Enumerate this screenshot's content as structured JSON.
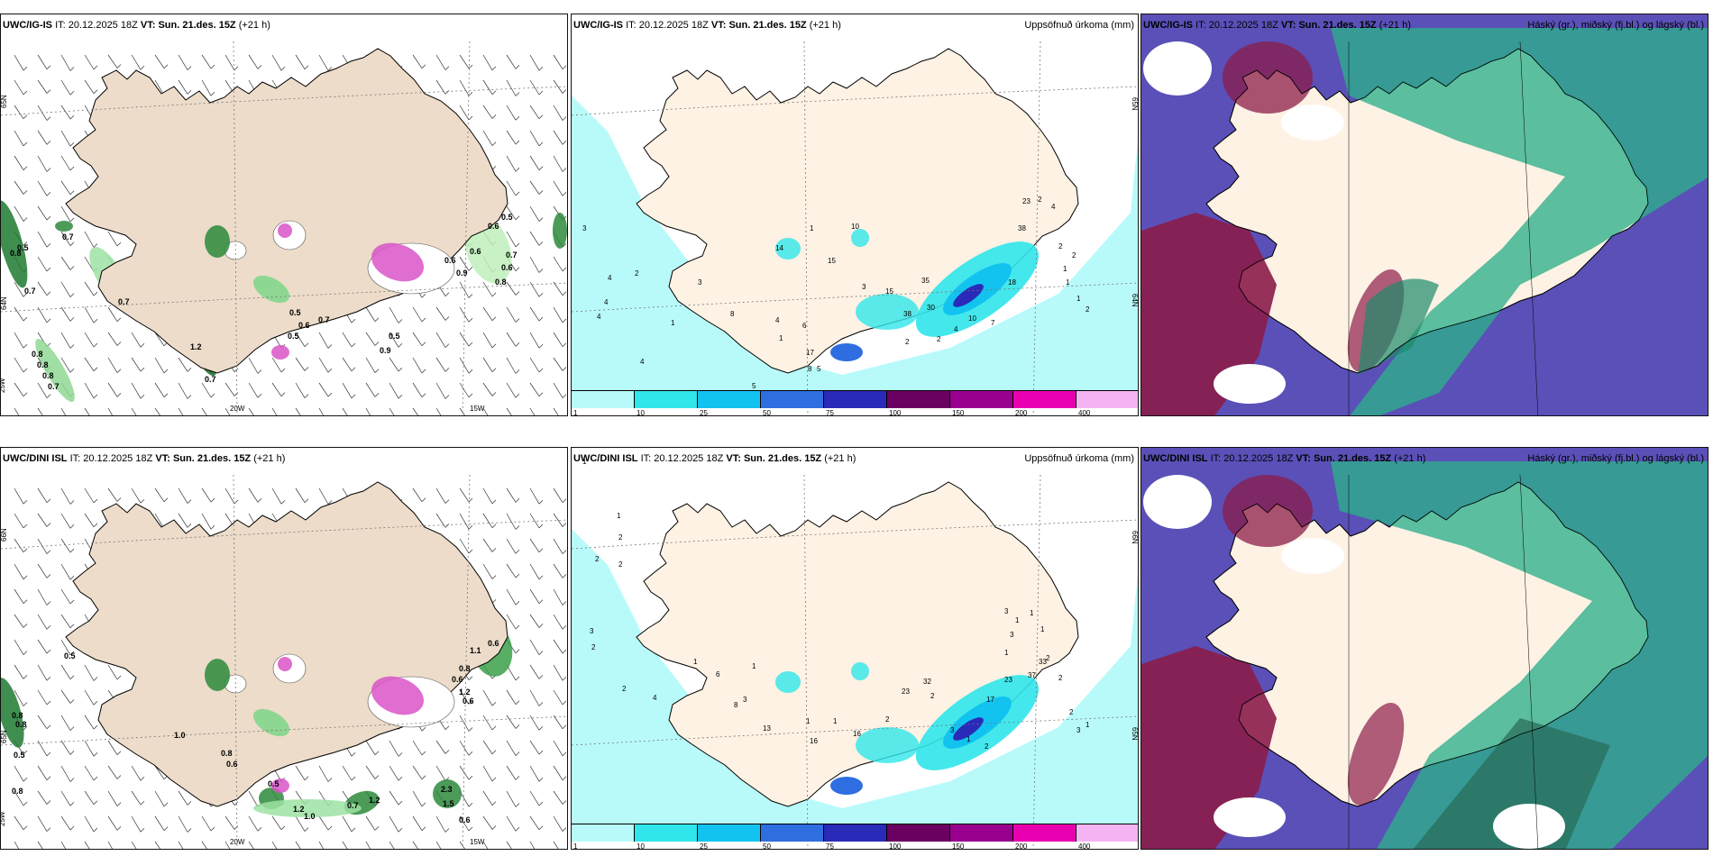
{
  "panels": [
    {
      "model": "UWC/IG-IS",
      "init_label": "IT:",
      "init": "20.12.2025 18Z",
      "valid_label": "VT:",
      "valid": "Sun. 21.des. 15Z",
      "lead": "(+21 h)",
      "field": "",
      "grid_labels": [
        "65N",
        "64N",
        "25W",
        "20W",
        "15W"
      ],
      "values": [
        "0.5",
        "0.7",
        "0.8",
        "0.7",
        "0.7",
        "0.8",
        "0.8",
        "0.8",
        "0.7",
        "1.2",
        "0.7",
        "0.5",
        "0.6",
        "0.5",
        "0.7",
        "0.9",
        "0.5",
        "0.6",
        "0.9",
        "0.6",
        "0.6",
        "0.7",
        "0.8",
        "0.6",
        "0.5"
      ]
    },
    {
      "model": "UWC/IG-IS",
      "init_label": "IT:",
      "init": "20.12.2025 18Z",
      "valid_label": "VT:",
      "valid": "Sun. 21.des. 15Z",
      "lead": "(+21 h)",
      "field": "Uppsöfnuð úrkoma (mm)",
      "grid_labels": [
        "65N",
        "64N"
      ],
      "values": [
        "3",
        "4",
        "4",
        "4",
        "4",
        "5",
        "1",
        "2",
        "3",
        "8",
        "4",
        "6",
        "1",
        "17",
        "8",
        "5",
        "1",
        "14",
        "10",
        "15",
        "3",
        "15",
        "38",
        "30",
        "35",
        "2",
        "2",
        "4",
        "10",
        "7",
        "18",
        "38",
        "23",
        "2",
        "4",
        "2",
        "1",
        "1",
        "1",
        "2",
        "2"
      ]
    },
    {
      "model": "UWC/IG-IS",
      "init_label": "IT:",
      "init": "20.12.2025 18Z",
      "valid_label": "VT:",
      "valid": "Sun. 21.des. 15Z",
      "lead": "(+21 h)",
      "field": "Háský (gr.), miðský (fj.bl.) og lágský (bl.)"
    },
    {
      "model": "UWC/DINI ISL",
      "init_label": "IT:",
      "init": "20.12.2025 18Z",
      "valid_label": "VT:",
      "valid": "Sun. 21.des. 15Z",
      "lead": "(+21 h)",
      "field": "",
      "grid_labels": [
        "66N",
        "65N",
        "25W",
        "20W",
        "15W"
      ],
      "values": [
        "0.5",
        "0.8",
        "0.8",
        "0.5",
        "0.8",
        "1.0",
        "0.8",
        "0.6",
        "0.5",
        "1.2",
        "1.0",
        "0.7",
        "1.2",
        "1.5",
        "0.6",
        "1.1",
        "0.6",
        "0.8",
        "0.6",
        "1.2",
        "0.6",
        "2.3"
      ]
    },
    {
      "model": "UWC/DINI ISL",
      "init_label": "IT:",
      "init": "20.12.2025 18Z",
      "valid_label": "VT:",
      "valid": "Sun. 21.des. 15Z",
      "lead": "(+21 h)",
      "field": "Uppsöfnuð úrkoma (mm)",
      "grid_labels": [
        "66N",
        "65N"
      ],
      "values": [
        "1",
        "1",
        "2",
        "2",
        "2",
        "3",
        "2",
        "2",
        "4",
        "6",
        "1",
        "8",
        "3",
        "1",
        "13",
        "1",
        "16",
        "1",
        "16",
        "2",
        "23",
        "32",
        "2",
        "3",
        "1",
        "2",
        "17",
        "23",
        "37",
        "33",
        "3",
        "3",
        "1",
        "1",
        "1",
        "2",
        "2",
        "2",
        "3",
        "1",
        "1"
      ]
    },
    {
      "model": "UWC/DINI ISL",
      "init_label": "IT:",
      "init": "20.12.2025 18Z",
      "valid_label": "VT:",
      "valid": "Sun. 21.des. 15Z",
      "lead": "(+21 h)",
      "field": "Háský (gr.), miðský (fj.bl.) og lágský (bl.)"
    }
  ],
  "colorbar": {
    "ticks": [
      "1",
      "10",
      "25",
      "50",
      "75",
      "100",
      "150",
      "200",
      "400"
    ],
    "colors": [
      "#b8fafa",
      "#30e6ea",
      "#12c3f0",
      "#2f6ee0",
      "#2a2ab8",
      "#6a0060",
      "#9a0090",
      "#e800b0",
      "#f4b4f4"
    ]
  },
  "colors": {
    "land": "#ecdcc9",
    "land_precip": "#fdf2e4",
    "sea_precip_light": "#b8fafa",
    "cloud_high": "#2db08a",
    "cloud_mid": "#8b1c4a",
    "cloud_low": "#5a50b8"
  }
}
